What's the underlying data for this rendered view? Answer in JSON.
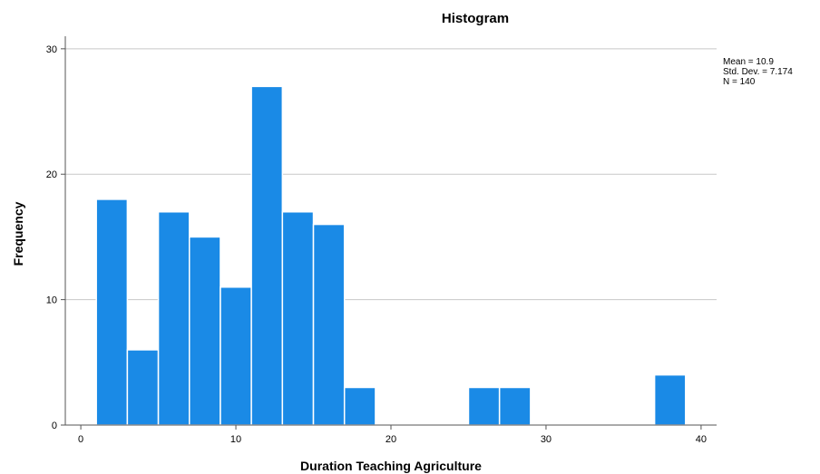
{
  "chart_data": {
    "type": "bar",
    "subtype": "histogram",
    "title": "Histogram",
    "xlabel": "Duration Teaching Agriculture",
    "ylabel": "Frequency",
    "xlim": [
      -1,
      41
    ],
    "ylim": [
      0,
      31
    ],
    "xticks": [
      0,
      10,
      20,
      30,
      40
    ],
    "yticks": [
      0,
      10,
      20,
      30
    ],
    "grid": "horizontal",
    "bins": [
      {
        "start": 1,
        "end": 3,
        "count": 18
      },
      {
        "start": 3,
        "end": 5,
        "count": 6
      },
      {
        "start": 5,
        "end": 7,
        "count": 17
      },
      {
        "start": 7,
        "end": 9,
        "count": 15
      },
      {
        "start": 9,
        "end": 11,
        "count": 11
      },
      {
        "start": 11,
        "end": 13,
        "count": 27
      },
      {
        "start": 13,
        "end": 15,
        "count": 17
      },
      {
        "start": 15,
        "end": 17,
        "count": 16
      },
      {
        "start": 17,
        "end": 19,
        "count": 3
      },
      {
        "start": 25,
        "end": 27,
        "count": 3
      },
      {
        "start": 27,
        "end": 29,
        "count": 3
      },
      {
        "start": 37,
        "end": 39,
        "count": 4
      }
    ],
    "bar_color": "#1a8ae6",
    "legend_position": "top-right",
    "stats": {
      "mean": "Mean = 10.9",
      "std_dev": "Std. Dev. = 7.174",
      "n": "N = 140"
    }
  }
}
